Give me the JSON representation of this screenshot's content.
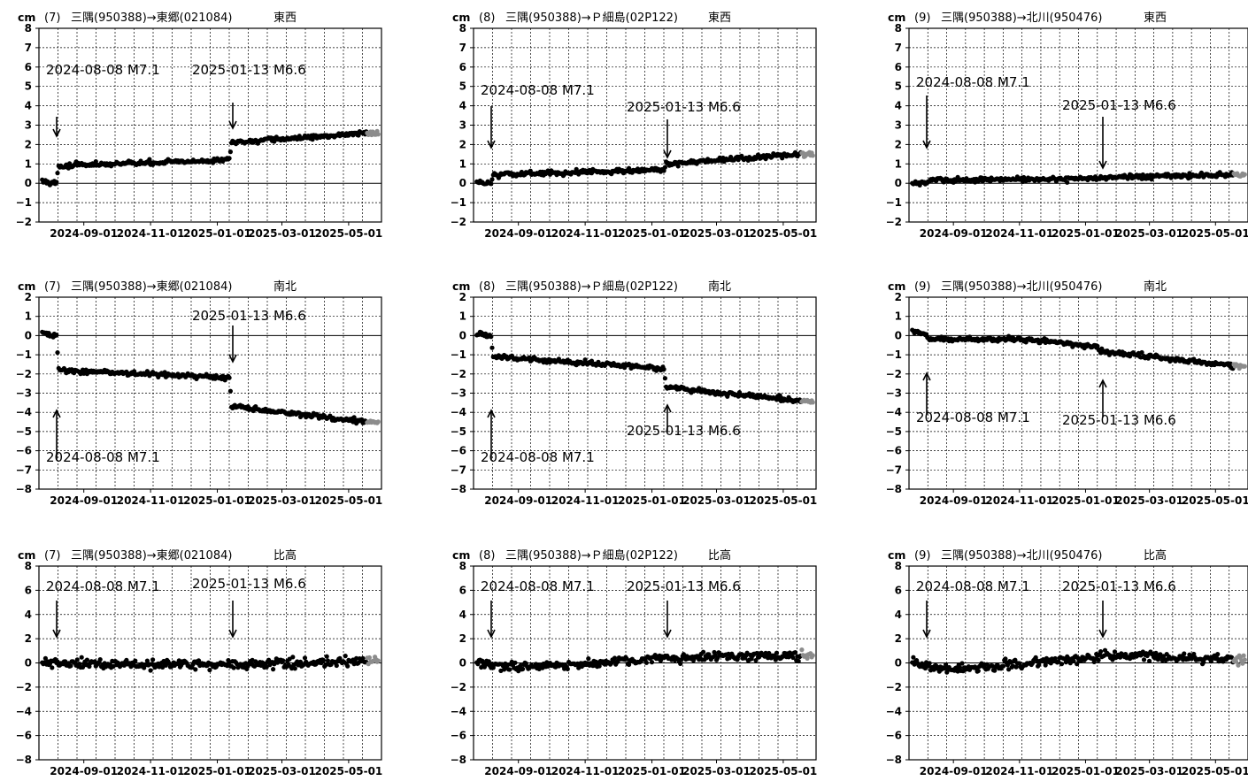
{
  "unit_label": "cm",
  "x_ticks": [
    "2024-09-01",
    "2024-11-01",
    "2025-01-01",
    "2025-03-01",
    "2025-05-01"
  ],
  "events": {
    "eq1": "2024-08-08 M7.1",
    "eq2": "2025-01-13 M6.6"
  },
  "colors": {
    "points": "#000000",
    "recent_points": "#8c8c8c",
    "grid": "#000000"
  },
  "chart_data": [
    {
      "type": "scatter",
      "pair": "(7)",
      "baseline": "三隅(950388)→東郷(021084)",
      "component": "東西",
      "xlim": [
        "2024-07-22",
        "2025-05-31"
      ],
      "ylim": [
        -2,
        8
      ],
      "y_ticks": [
        "8",
        "7",
        "6",
        "5",
        "4",
        "3",
        "2",
        "1",
        "0",
        "−1",
        "−2"
      ],
      "segments": [
        [
          "2024-07-25",
          0.1
        ],
        [
          "2024-08-07",
          0.0
        ],
        [
          "2024-08-09",
          0.9
        ],
        [
          "2025-01-12",
          1.2
        ],
        [
          "2025-01-14",
          2.1
        ],
        [
          "2025-05-20",
          2.6
        ]
      ],
      "scatter": 0.15,
      "recent_from": "2025-05-18"
    },
    {
      "type": "scatter",
      "pair": "(8)",
      "baseline": "三隅(950388)→Ｐ細島(02P122)",
      "component": "東西",
      "xlim": [
        "2024-07-22",
        "2025-05-31"
      ],
      "ylim": [
        -2,
        8
      ],
      "y_ticks": [
        "8",
        "7",
        "6",
        "5",
        "4",
        "3",
        "2",
        "1",
        "0",
        "−1",
        "−2"
      ],
      "segments": [
        [
          "2024-07-25",
          0.0
        ],
        [
          "2024-08-07",
          0.0
        ],
        [
          "2024-08-09",
          0.45
        ],
        [
          "2025-01-12",
          0.7
        ],
        [
          "2025-01-14",
          1.0
        ],
        [
          "2025-05-20",
          1.5
        ]
      ],
      "scatter": 0.15,
      "recent_from": "2025-05-18"
    },
    {
      "type": "scatter",
      "pair": "(9)",
      "baseline": "三隅(950388)→北川(950476)",
      "component": "東西",
      "xlim": [
        "2024-07-22",
        "2025-05-31"
      ],
      "ylim": [
        -2,
        8
      ],
      "y_ticks": [
        "8",
        "7",
        "6",
        "5",
        "4",
        "3",
        "2",
        "1",
        "0",
        "−1",
        "−2"
      ],
      "segments": [
        [
          "2024-07-25",
          0.0
        ],
        [
          "2024-08-07",
          0.0
        ],
        [
          "2024-08-09",
          0.15
        ],
        [
          "2025-01-12",
          0.25
        ],
        [
          "2025-01-14",
          0.3
        ],
        [
          "2025-05-20",
          0.45
        ]
      ],
      "scatter": 0.15,
      "recent_from": "2025-05-18"
    },
    {
      "type": "scatter",
      "pair": "(7)",
      "baseline": "三隅(950388)→東郷(021084)",
      "component": "南北",
      "xlim": [
        "2024-07-22",
        "2025-05-31"
      ],
      "ylim": [
        -8,
        2
      ],
      "y_ticks": [
        "2",
        "1",
        "0",
        "−1",
        "−2",
        "−3",
        "−4",
        "−5",
        "−6",
        "−7",
        "−8"
      ],
      "segments": [
        [
          "2024-07-25",
          0.1
        ],
        [
          "2024-08-07",
          0.0
        ],
        [
          "2024-08-09",
          -1.8
        ],
        [
          "2025-01-12",
          -2.2
        ],
        [
          "2025-01-14",
          -3.7
        ],
        [
          "2025-05-20",
          -4.5
        ]
      ],
      "scatter": 0.15,
      "recent_from": "2025-05-18"
    },
    {
      "type": "scatter",
      "pair": "(8)",
      "baseline": "三隅(950388)→Ｐ細島(02P122)",
      "component": "南北",
      "xlim": [
        "2024-07-22",
        "2025-05-31"
      ],
      "ylim": [
        -8,
        2
      ],
      "y_ticks": [
        "2",
        "1",
        "0",
        "−1",
        "−2",
        "−3",
        "−4",
        "−5",
        "−6",
        "−7",
        "−8"
      ],
      "segments": [
        [
          "2024-07-25",
          0.1
        ],
        [
          "2024-08-07",
          0.0
        ],
        [
          "2024-08-09",
          -1.1
        ],
        [
          "2025-01-12",
          -1.7
        ],
        [
          "2025-01-14",
          -2.7
        ],
        [
          "2025-05-20",
          -3.4
        ]
      ],
      "scatter": 0.15,
      "recent_from": "2025-05-18"
    },
    {
      "type": "scatter",
      "pair": "(9)",
      "baseline": "三隅(950388)→北川(950476)",
      "component": "南北",
      "xlim": [
        "2024-07-22",
        "2025-05-31"
      ],
      "ylim": [
        -8,
        2
      ],
      "y_ticks": [
        "2",
        "1",
        "0",
        "−1",
        "−2",
        "−3",
        "−4",
        "−5",
        "−6",
        "−7",
        "−8"
      ],
      "segments": [
        [
          "2024-07-25",
          0.2
        ],
        [
          "2024-08-07",
          0.05
        ],
        [
          "2024-08-09",
          -0.2
        ],
        [
          "2024-11-15",
          -0.2
        ],
        [
          "2025-01-12",
          -0.6
        ],
        [
          "2025-01-14",
          -0.8
        ],
        [
          "2025-05-20",
          -1.6
        ]
      ],
      "scatter": 0.15,
      "recent_from": "2025-05-18"
    },
    {
      "type": "scatter",
      "pair": "(7)",
      "baseline": "三隅(950388)→東郷(021084)",
      "component": "比高",
      "xlim": [
        "2024-07-22",
        "2025-05-31"
      ],
      "ylim": [
        -9,
        9
      ],
      "y_ticks": [
        "8",
        "6",
        "4",
        "2",
        "0",
        "−2",
        "−4",
        "−6",
        "−8"
      ],
      "segments": [
        [
          "2024-07-25",
          0.0
        ],
        [
          "2025-01-12",
          -0.2
        ],
        [
          "2025-01-14",
          -0.2
        ],
        [
          "2025-05-20",
          0.2
        ]
      ],
      "scatter": 0.55,
      "recent_from": "2025-05-18"
    },
    {
      "type": "scatter",
      "pair": "(8)",
      "baseline": "三隅(950388)→Ｐ細島(02P122)",
      "component": "比高",
      "xlim": [
        "2024-07-22",
        "2025-05-31"
      ],
      "ylim": [
        -9,
        9
      ],
      "y_ticks": [
        "8",
        "6",
        "4",
        "2",
        "0",
        "−2",
        "−4",
        "−6",
        "−8"
      ],
      "segments": [
        [
          "2024-07-25",
          0.0
        ],
        [
          "2024-09-01",
          -0.4
        ],
        [
          "2025-01-12",
          0.4
        ],
        [
          "2025-01-14",
          0.5
        ],
        [
          "2025-05-20",
          0.7
        ]
      ],
      "scatter": 0.55,
      "recent_from": "2025-05-18"
    },
    {
      "type": "scatter",
      "pair": "(9)",
      "baseline": "三隅(950388)→北川(950476)",
      "component": "比高",
      "xlim": [
        "2024-07-22",
        "2025-05-31"
      ],
      "ylim": [
        -9,
        9
      ],
      "y_ticks": [
        "8",
        "6",
        "4",
        "2",
        "0",
        "−2",
        "−4",
        "−6",
        "−8"
      ],
      "segments": [
        [
          "2024-07-25",
          0.0
        ],
        [
          "2024-09-01",
          -0.6
        ],
        [
          "2025-01-12",
          0.5
        ],
        [
          "2025-01-14",
          0.8
        ],
        [
          "2025-05-20",
          0.3
        ]
      ],
      "scatter": 0.55,
      "recent_from": "2025-05-18"
    }
  ]
}
